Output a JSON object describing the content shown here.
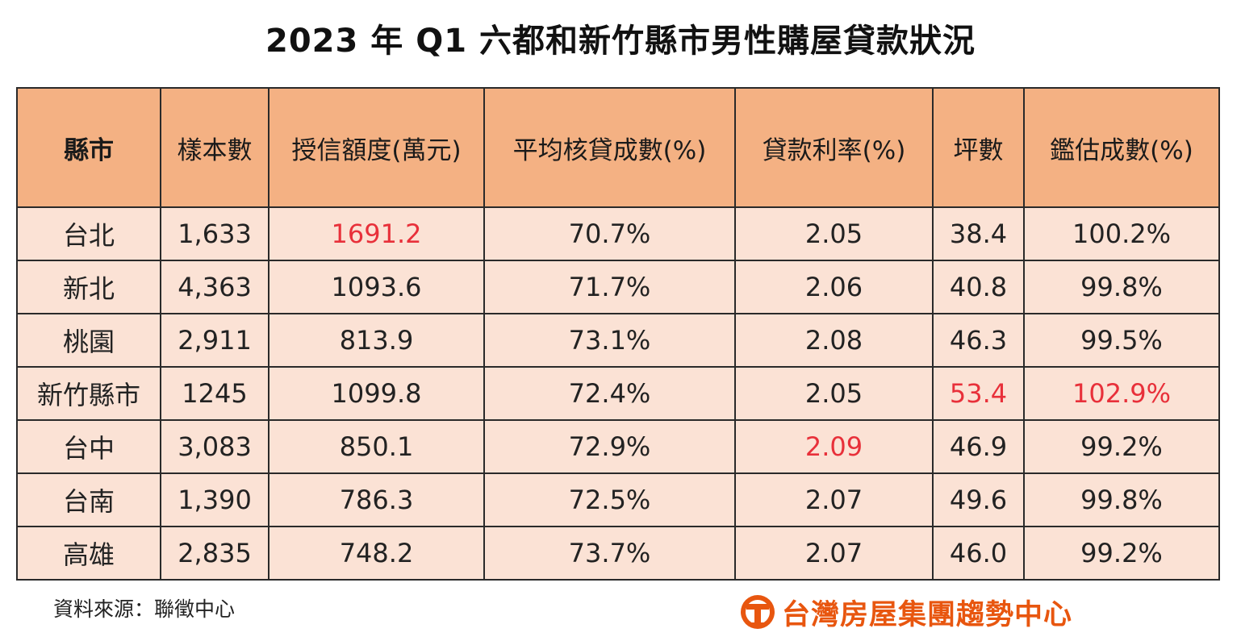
{
  "chart_data": {
    "type": "table",
    "title": "2023 年 Q1 六都和新竹縣市男性購屋貸款狀況",
    "columns": [
      "縣市",
      "樣本數",
      "授信額度(萬元)",
      "平均核貸成數(%)",
      "貸款利率(%)",
      "坪數",
      "鑑估成數(%)"
    ],
    "rows": [
      [
        "台北",
        "1,633",
        "1691.2",
        "70.7%",
        "2.05",
        "38.4",
        "100.2%"
      ],
      [
        "新北",
        "4,363",
        "1093.6",
        "71.7%",
        "2.06",
        "40.8",
        "99.8%"
      ],
      [
        "桃園",
        "2,911",
        "813.9",
        "73.1%",
        "2.08",
        "46.3",
        "99.5%"
      ],
      [
        "新竹縣市",
        "1245",
        "1099.8",
        "72.4%",
        "2.05",
        "53.4",
        "102.9%"
      ],
      [
        "台中",
        "3,083",
        "850.1",
        "72.9%",
        "2.09",
        "46.9",
        "99.2%"
      ],
      [
        "台南",
        "1,390",
        "786.3",
        "72.5%",
        "2.07",
        "49.6",
        "99.8%"
      ],
      [
        "高雄",
        "2,835",
        "748.2",
        "73.7%",
        "2.07",
        "46.0",
        "99.2%"
      ]
    ],
    "highlighted_cells": [
      [
        0,
        2
      ],
      [
        3,
        5
      ],
      [
        3,
        6
      ],
      [
        4,
        4
      ]
    ],
    "highlight_color": "#e8303a",
    "header_color": "#f4b183",
    "row_color": "#fbe2d5"
  },
  "footer": {
    "source": "資料來源：聯徵中心",
    "brand": "台灣房屋集團趨勢中心",
    "brand_color": "#e8560f",
    "brand_icon": "taiwan-realty-logo-icon"
  }
}
